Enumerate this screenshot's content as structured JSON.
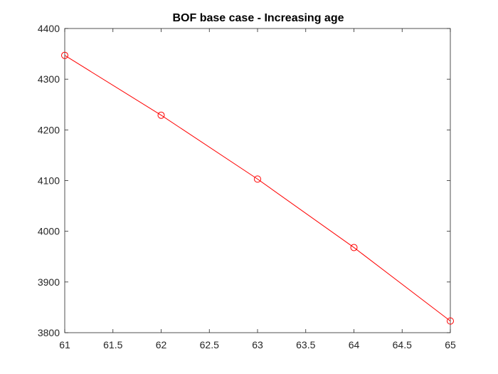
{
  "chart_data": {
    "type": "line",
    "title": "BOF base case - Increasing age",
    "xlabel": "",
    "ylabel": "",
    "xlim": [
      61,
      65
    ],
    "ylim": [
      3800,
      4400
    ],
    "x_ticks": [
      "61",
      "61.5",
      "62",
      "62.5",
      "63",
      "63.5",
      "64",
      "64.5",
      "65"
    ],
    "y_ticks": [
      "3800",
      "3900",
      "4000",
      "4100",
      "4200",
      "4300",
      "4400"
    ],
    "grid": false,
    "series": [
      {
        "x": [
          61,
          62,
          63,
          64,
          65
        ],
        "y": [
          4347,
          4229,
          4103,
          3968,
          3823
        ],
        "color": "#ff0000",
        "marker": "circle-open"
      }
    ]
  }
}
